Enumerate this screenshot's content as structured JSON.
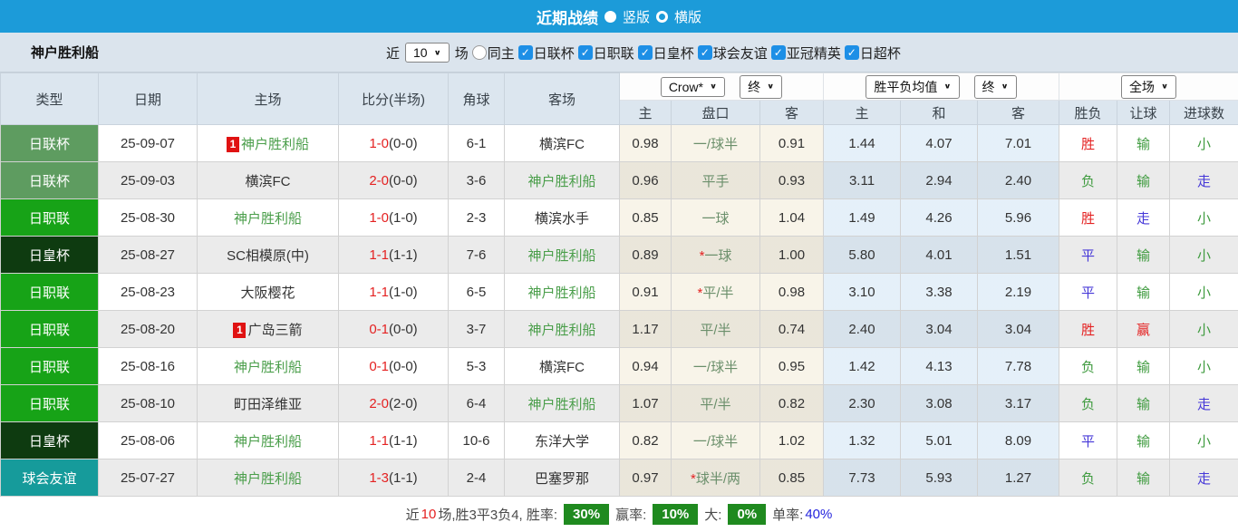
{
  "titlebar": {
    "title": "近期战绩",
    "radio_vertical": "竖版",
    "radio_horizontal": "横版"
  },
  "filterbar": {
    "team": "神户胜利船",
    "recent_label": "近",
    "recent_value": "10",
    "matches_label": "场",
    "same_home_label": "同主",
    "competitions": [
      "日联杯",
      "日职联",
      "日皇杯",
      "球会友谊",
      "亚冠精英",
      "日超杯"
    ]
  },
  "table": {
    "headers": {
      "type": "类型",
      "date": "日期",
      "home": "主场",
      "score": "比分(半场)",
      "corner": "角球",
      "away": "客场",
      "odds_dropdown": "Crow*",
      "odds_final": "终",
      "avg_dropdown": "胜平负均值",
      "avg_final": "终",
      "fullmatch_dropdown": "全场",
      "sub": [
        "主",
        "盘口",
        "客",
        "主",
        "和",
        "客",
        "胜负",
        "让球",
        "进球数"
      ]
    },
    "badge_colors": {
      "日联杯": "#5e9c60",
      "日职联": "#17a317",
      "日皇杯": "#0e3b10",
      "球会友谊": "#169b9b"
    },
    "rows": [
      {
        "type": "日联杯",
        "type_color": "#5e9c60",
        "date": "25-09-07",
        "home": "神户胜利船",
        "home_self": true,
        "home_rank": "1",
        "score": "1-0",
        "half": "(0-0)",
        "corner": "6-1",
        "away": "横滨FC",
        "away_self": false,
        "away_rank": "",
        "odds_home": "0.98",
        "handicap": "一/球半",
        "handicap_star": false,
        "odds_away": "0.91",
        "avg_home": "1.44",
        "avg_draw": "4.07",
        "avg_away": "7.01",
        "result": "胜",
        "result_color": "red",
        "handicap_result": "输",
        "handicap_result_color": "green",
        "goals": "小",
        "goals_color": "green"
      },
      {
        "type": "日联杯",
        "type_color": "#5e9c60",
        "date": "25-09-03",
        "home": "横滨FC",
        "home_self": false,
        "home_rank": "",
        "score": "2-0",
        "half": "(0-0)",
        "corner": "3-6",
        "away": "神户胜利船",
        "away_self": true,
        "away_rank": "",
        "odds_home": "0.96",
        "handicap": "平手",
        "handicap_star": false,
        "odds_away": "0.93",
        "avg_home": "3.11",
        "avg_draw": "2.94",
        "avg_away": "2.40",
        "result": "负",
        "result_color": "green",
        "handicap_result": "输",
        "handicap_result_color": "green",
        "goals": "走",
        "goals_color": "blue"
      },
      {
        "type": "日职联",
        "type_color": "#17a317",
        "date": "25-08-30",
        "home": "神户胜利船",
        "home_self": true,
        "home_rank": "",
        "score": "1-0",
        "half": "(1-0)",
        "corner": "2-3",
        "away": "横滨水手",
        "away_self": false,
        "away_rank": "",
        "odds_home": "0.85",
        "handicap": "一球",
        "handicap_star": false,
        "odds_away": "1.04",
        "avg_home": "1.49",
        "avg_draw": "4.26",
        "avg_away": "5.96",
        "result": "胜",
        "result_color": "red",
        "handicap_result": "走",
        "handicap_result_color": "blue",
        "goals": "小",
        "goals_color": "green"
      },
      {
        "type": "日皇杯",
        "type_color": "#0e3b10",
        "date": "25-08-27",
        "home": "SC相模原(中)",
        "home_self": false,
        "home_rank": "",
        "score": "1-1",
        "half": "(1-1)",
        "corner": "7-6",
        "away": "神户胜利船",
        "away_self": true,
        "away_rank": "",
        "odds_home": "0.89",
        "handicap": "一球",
        "handicap_star": true,
        "odds_away": "1.00",
        "avg_home": "5.80",
        "avg_draw": "4.01",
        "avg_away": "1.51",
        "result": "平",
        "result_color": "blue",
        "handicap_result": "输",
        "handicap_result_color": "green",
        "goals": "小",
        "goals_color": "green"
      },
      {
        "type": "日职联",
        "type_color": "#17a317",
        "date": "25-08-23",
        "home": "大阪樱花",
        "home_self": false,
        "home_rank": "",
        "score": "1-1",
        "half": "(1-0)",
        "corner": "6-5",
        "away": "神户胜利船",
        "away_self": true,
        "away_rank": "",
        "odds_home": "0.91",
        "handicap": "平/半",
        "handicap_star": true,
        "odds_away": "0.98",
        "avg_home": "3.10",
        "avg_draw": "3.38",
        "avg_away": "2.19",
        "result": "平",
        "result_color": "blue",
        "handicap_result": "输",
        "handicap_result_color": "green",
        "goals": "小",
        "goals_color": "green"
      },
      {
        "type": "日职联",
        "type_color": "#17a317",
        "date": "25-08-20",
        "home": "广岛三箭",
        "home_self": false,
        "home_rank": "1",
        "score": "0-1",
        "half": "(0-0)",
        "corner": "3-7",
        "away": "神户胜利船",
        "away_self": true,
        "away_rank": "",
        "odds_home": "1.17",
        "handicap": "平/半",
        "handicap_star": false,
        "odds_away": "0.74",
        "avg_home": "2.40",
        "avg_draw": "3.04",
        "avg_away": "3.04",
        "result": "胜",
        "result_color": "red",
        "handicap_result": "赢",
        "handicap_result_color": "red",
        "goals": "小",
        "goals_color": "green"
      },
      {
        "type": "日职联",
        "type_color": "#17a317",
        "date": "25-08-16",
        "home": "神户胜利船",
        "home_self": true,
        "home_rank": "",
        "score": "0-1",
        "half": "(0-0)",
        "corner": "5-3",
        "away": "横滨FC",
        "away_self": false,
        "away_rank": "",
        "odds_home": "0.94",
        "handicap": "一/球半",
        "handicap_star": false,
        "odds_away": "0.95",
        "avg_home": "1.42",
        "avg_draw": "4.13",
        "avg_away": "7.78",
        "result": "负",
        "result_color": "green",
        "handicap_result": "输",
        "handicap_result_color": "green",
        "goals": "小",
        "goals_color": "green"
      },
      {
        "type": "日职联",
        "type_color": "#17a317",
        "date": "25-08-10",
        "home": "町田泽维亚",
        "home_self": false,
        "home_rank": "",
        "score": "2-0",
        "half": "(2-0)",
        "corner": "6-4",
        "away": "神户胜利船",
        "away_self": true,
        "away_rank": "",
        "odds_home": "1.07",
        "handicap": "平/半",
        "handicap_star": false,
        "odds_away": "0.82",
        "avg_home": "2.30",
        "avg_draw": "3.08",
        "avg_away": "3.17",
        "result": "负",
        "result_color": "green",
        "handicap_result": "输",
        "handicap_result_color": "green",
        "goals": "走",
        "goals_color": "blue"
      },
      {
        "type": "日皇杯",
        "type_color": "#0e3b10",
        "date": "25-08-06",
        "home": "神户胜利船",
        "home_self": true,
        "home_rank": "",
        "score": "1-1",
        "half": "(1-1)",
        "corner": "10-6",
        "away": "东洋大学",
        "away_self": false,
        "away_rank": "",
        "odds_home": "0.82",
        "handicap": "一/球半",
        "handicap_star": false,
        "odds_away": "1.02",
        "avg_home": "1.32",
        "avg_draw": "5.01",
        "avg_away": "8.09",
        "result": "平",
        "result_color": "blue",
        "handicap_result": "输",
        "handicap_result_color": "green",
        "goals": "小",
        "goals_color": "green"
      },
      {
        "type": "球会友谊",
        "type_color": "#169b9b",
        "date": "25-07-27",
        "home": "神户胜利船",
        "home_self": true,
        "home_rank": "",
        "score": "1-3",
        "half": "(1-1)",
        "corner": "2-4",
        "away": "巴塞罗那",
        "away_self": false,
        "away_rank": "",
        "odds_home": "0.97",
        "handicap": "球半/两",
        "handicap_star": true,
        "odds_away": "0.85",
        "avg_home": "7.73",
        "avg_draw": "5.93",
        "avg_away": "1.27",
        "result": "负",
        "result_color": "green",
        "handicap_result": "输",
        "handicap_result_color": "green",
        "goals": "走",
        "goals_color": "blue"
      }
    ]
  },
  "summary": {
    "parts": [
      {
        "t": "近",
        "cls": ""
      },
      {
        "t": "10",
        "cls": "red-text"
      },
      {
        "t": "场,胜3平3负4, 胜率:",
        "cls": ""
      },
      {
        "t": "30%",
        "cls": "pct"
      },
      {
        "t": "赢率:",
        "cls": ""
      },
      {
        "t": "10%",
        "cls": "pct"
      },
      {
        "t": "大:",
        "cls": ""
      },
      {
        "t": "0%",
        "cls": "pct"
      },
      {
        "t": "单率:",
        "cls": ""
      },
      {
        "t": "40%",
        "cls": "blue-text"
      }
    ]
  }
}
